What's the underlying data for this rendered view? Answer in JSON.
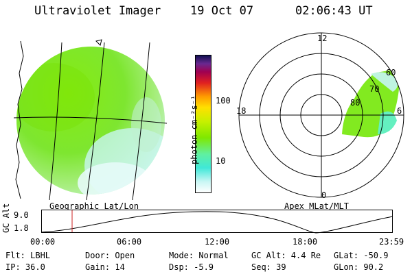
{
  "header": {
    "instrument": "Ultraviolet Imager",
    "date": "19 Oct 07",
    "time": "02:06:43 UT"
  },
  "colorbar": {
    "unit_label": "photon cm⁻²s⁻¹",
    "ticks": [
      "100",
      "10"
    ]
  },
  "left_panel": {
    "caption": "Geographic Lat/Lon"
  },
  "right_panel": {
    "caption": "Apex MLat/MLT",
    "mlt_labels": [
      "12",
      "18",
      "6",
      "0"
    ],
    "lat_labels": [
      "60",
      "70",
      "80"
    ]
  },
  "altitude_plot": {
    "ylabel": "GC Alt",
    "yticks": [
      "9.0",
      "1.8"
    ],
    "xticks": [
      "00:00",
      "06:00",
      "12:00",
      "18:00",
      "23:59"
    ],
    "marker_time_hours": 2.11
  },
  "footer": {
    "flt": "Flt: LBHL",
    "ip": "IP: 36.0",
    "door": "Door: Open",
    "gain": "Gain: 14",
    "mode": "Mode: Normal",
    "dsp": "Dsp:   -5.9",
    "gc_alt": "GC Alt: 4.4 Re",
    "seq": "Seq: 39",
    "glat": "GLat: -50.9",
    "glon": "GLon:  90.2"
  },
  "colors": {
    "aurora_main": "#7ff000",
    "aurora_light": "#c8f5a0",
    "aurora_cyan": "#60f0e0",
    "marker_red": "#cc2222"
  }
}
